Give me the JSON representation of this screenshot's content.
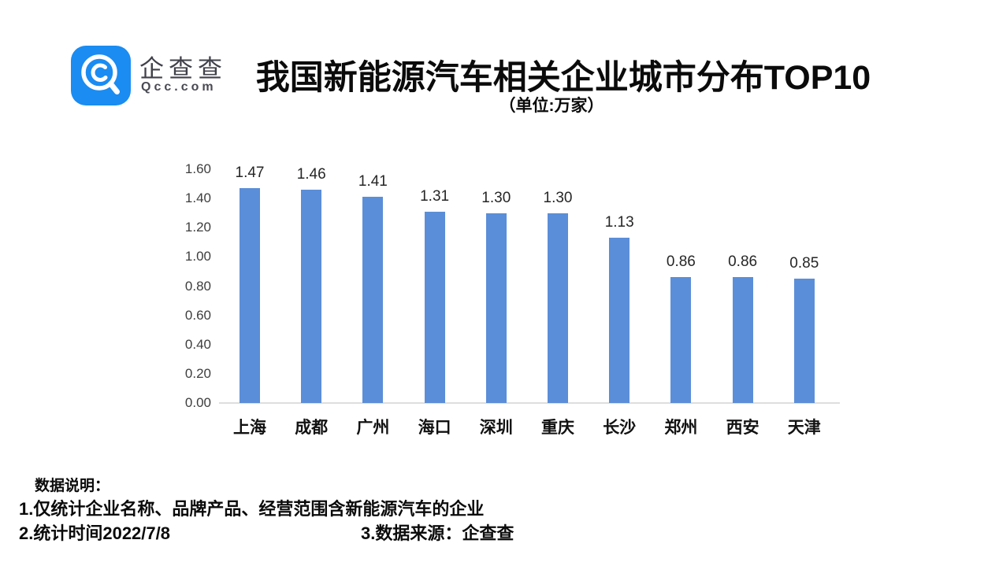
{
  "header": {
    "brand_name": "企查查",
    "brand_domain": "Qcc.com",
    "title": "我国新能源汽车相关企业城市分布TOP10",
    "subtitle": "（单位:万家）"
  },
  "chart_data": {
    "type": "bar",
    "title": "我国新能源汽车相关企业城市分布TOP10",
    "unit_label": "（单位:万家）",
    "categories": [
      "上海",
      "成都",
      "广州",
      "海口",
      "深圳",
      "重庆",
      "长沙",
      "郑州",
      "西安",
      "天津"
    ],
    "values": [
      1.47,
      1.46,
      1.41,
      1.31,
      1.3,
      1.3,
      1.13,
      0.86,
      0.86,
      0.85
    ],
    "ylim": [
      0,
      1.6
    ],
    "ytick_labels": [
      "0.00",
      "0.20",
      "0.40",
      "0.60",
      "0.80",
      "1.00",
      "1.20",
      "1.40",
      "1.60"
    ],
    "grid": false,
    "legend": false,
    "bar_color": "#5B8ED8",
    "xlabel": "",
    "ylabel": ""
  },
  "footer": {
    "heading": "数据说明：",
    "note1": "1.仅统计企业名称、品牌产品、经营范围含新能源汽车的企业",
    "note2": "2.统计时间2022/7/8",
    "note3": "3.数据来源：企查查"
  },
  "colors": {
    "bar": "#5B8ED8",
    "logo_blue": "#1A8CF2",
    "axis_line": "#DEDEDE"
  }
}
